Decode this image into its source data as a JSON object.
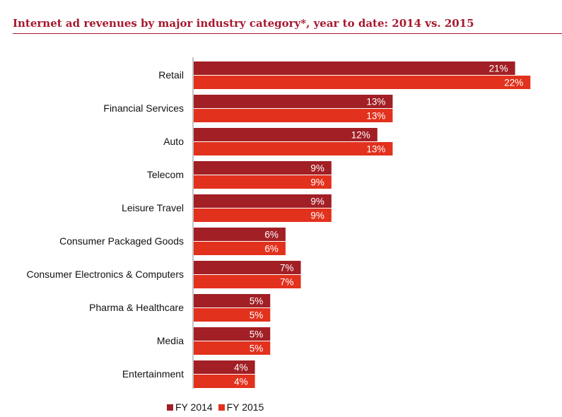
{
  "title": "Internet ad revenues by major industry category*, year to date: 2014 vs. 2015",
  "chart_data": {
    "type": "bar",
    "orientation": "horizontal",
    "title": "Internet ad revenues by major industry category*, year to date: 2014 vs. 2015",
    "categories": [
      "Retail",
      "Financial Services",
      "Auto",
      "Telecom",
      "Leisure Travel",
      "Consumer Packaged Goods",
      "Consumer Electronics & Computers",
      "Pharma & Healthcare",
      "Media",
      "Entertainment"
    ],
    "series": [
      {
        "name": "FY 2014",
        "color": "#a11f25",
        "values": [
          21,
          13,
          12,
          9,
          9,
          6,
          7,
          5,
          5,
          4
        ],
        "labels": [
          "21%",
          "13%",
          "12%",
          "9%",
          "9%",
          "6%",
          "7%",
          "5%",
          "5%",
          "4%"
        ]
      },
      {
        "name": "FY 2015",
        "color": "#e2311d",
        "values": [
          22,
          13,
          13,
          9,
          9,
          6,
          7,
          5,
          5,
          4
        ],
        "labels": [
          "22%",
          "13%",
          "13%",
          "9%",
          "9%",
          "6%",
          "7%",
          "5%",
          "5%",
          "4%"
        ]
      }
    ],
    "xlim": [
      0,
      25
    ],
    "grid": false,
    "legend_position": "bottom"
  }
}
